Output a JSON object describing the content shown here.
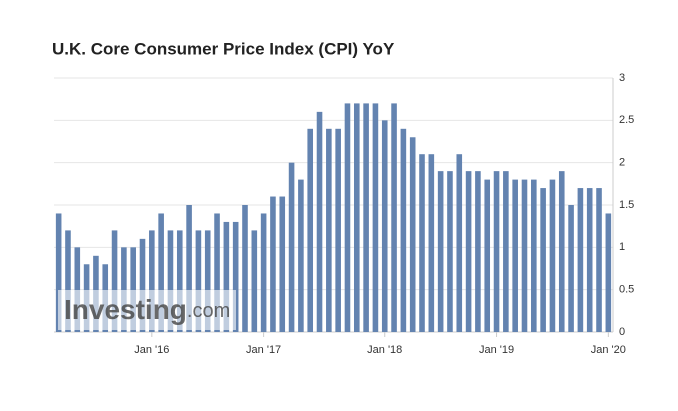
{
  "chart_data": {
    "type": "bar",
    "title": "U.K. Core Consumer Price Index (CPI) YoY",
    "watermark": [
      "Investing",
      ".com"
    ],
    "categories": [
      null,
      null,
      null,
      null,
      null,
      null,
      null,
      null,
      null,
      null,
      "Jan '16",
      null,
      null,
      null,
      null,
      null,
      null,
      null,
      null,
      null,
      null,
      null,
      "Jan '17",
      null,
      null,
      null,
      null,
      null,
      null,
      null,
      null,
      null,
      null,
      null,
      null,
      "Jan '18",
      null,
      null,
      null,
      null,
      null,
      null,
      null,
      null,
      null,
      null,
      null,
      "Jan '19",
      null,
      null,
      null,
      null,
      null,
      null,
      null,
      null,
      null,
      null,
      null,
      "Jan '20"
    ],
    "values": [
      1.4,
      1.2,
      1.0,
      0.8,
      0.9,
      0.8,
      1.2,
      1.0,
      1.0,
      1.1,
      1.2,
      1.4,
      1.2,
      1.2,
      1.5,
      1.2,
      1.2,
      1.4,
      1.3,
      1.3,
      1.5,
      1.2,
      1.4,
      1.6,
      1.6,
      2.0,
      1.8,
      2.4,
      2.6,
      2.4,
      2.4,
      2.7,
      2.7,
      2.7,
      2.7,
      2.5,
      2.7,
      2.4,
      2.3,
      2.1,
      2.1,
      1.9,
      1.9,
      2.1,
      1.9,
      1.9,
      1.8,
      1.9,
      1.9,
      1.8,
      1.8,
      1.8,
      1.7,
      1.8,
      1.9,
      1.5,
      1.7,
      1.7,
      1.7,
      1.4
    ],
    "color": "#6383b0",
    "ylim": [
      0,
      3
    ],
    "yticks": [
      0,
      0.5,
      1,
      1.5,
      2,
      2.5,
      3
    ],
    "grid": true
  }
}
